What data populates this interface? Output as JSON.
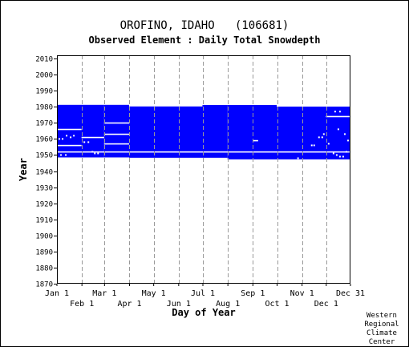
{
  "header": {
    "station": "OROFINO, IDAHO   (106681)",
    "subtitle": "Observed Element : Daily Total Snowdepth"
  },
  "footer": {
    "credit": "Western\nRegional\nClimate\nCenter"
  },
  "colors": {
    "data": "#0000ff",
    "gaps": "#ffffff",
    "grid": "#999999",
    "axis": "#000000"
  },
  "chart_data": {
    "type": "heatmap",
    "title": "OROFINO, IDAHO   (106681)",
    "subtitle": "Observed Element : Daily Total Snowdepth",
    "xlabel": "Day of Year",
    "ylabel": "Year",
    "xlim": [
      1,
      365
    ],
    "ylim": [
      1870,
      2012
    ],
    "x_ticks_upper": [
      {
        "label": "Jan 1",
        "day": 1
      },
      {
        "label": "Mar 1",
        "day": 60
      },
      {
        "label": "May 1",
        "day": 121
      },
      {
        "label": "Jul 1",
        "day": 182
      },
      {
        "label": "Sep 1",
        "day": 244
      },
      {
        "label": "Nov 1",
        "day": 305
      },
      {
        "label": "Dec 31",
        "day": 365
      }
    ],
    "x_ticks_lower": [
      {
        "label": "Feb 1",
        "day": 32
      },
      {
        "label": "Apr 1",
        "day": 91
      },
      {
        "label": "Jun 1",
        "day": 152
      },
      {
        "label": "Aug 1",
        "day": 213
      },
      {
        "label": "Oct 1",
        "day": 274
      },
      {
        "label": "Dec 1",
        "day": 335
      }
    ],
    "y_ticks": [
      2010,
      2000,
      1990,
      1980,
      1970,
      1960,
      1950,
      1940,
      1930,
      1920,
      1910,
      1900,
      1890,
      1880,
      1870
    ],
    "grid": true,
    "data_blocks": [
      {
        "start_day": 1,
        "end_day": 59,
        "from_year": 1948.5,
        "to_year": 1981.2
      },
      {
        "start_day": 60,
        "end_day": 90,
        "from_year": 1948.5,
        "to_year": 1981.2
      },
      {
        "start_day": 91,
        "end_day": 181,
        "from_year": 1948.3,
        "to_year": 1980.2
      },
      {
        "start_day": 182,
        "end_day": 212,
        "from_year": 1948.3,
        "to_year": 1981.1
      },
      {
        "start_day": 213,
        "end_day": 273,
        "from_year": 1947.3,
        "to_year": 1981.1
      },
      {
        "start_day": 274,
        "end_day": 365,
        "from_year": 1947.3,
        "to_year": 1980.1
      }
    ],
    "missing_periods": [
      {
        "year": 1952,
        "start_day": 1,
        "end_day": 365
      },
      {
        "year": 1966,
        "start_day": 1,
        "end_day": 31
      },
      {
        "year": 1956,
        "start_day": 1,
        "end_day": 31
      },
      {
        "year": 1961,
        "start_day": 32,
        "end_day": 59
      },
      {
        "year": 1970,
        "start_day": 60,
        "end_day": 90
      },
      {
        "year": 1963,
        "start_day": 60,
        "end_day": 90
      },
      {
        "year": 1957,
        "start_day": 60,
        "end_day": 90
      },
      {
        "year": 1959,
        "start_day": 245,
        "end_day": 250
      },
      {
        "year": 1974,
        "start_day": 335,
        "end_day": 365
      }
    ],
    "missing_points": [
      {
        "day": 4,
        "year": 1960
      },
      {
        "day": 8,
        "year": 1960
      },
      {
        "day": 13,
        "year": 1962
      },
      {
        "day": 18,
        "year": 1961
      },
      {
        "day": 22,
        "year": 1962
      },
      {
        "day": 6,
        "year": 1950
      },
      {
        "day": 12,
        "year": 1950
      },
      {
        "day": 35,
        "year": 1958
      },
      {
        "day": 40,
        "year": 1958
      },
      {
        "day": 45,
        "year": 1952
      },
      {
        "day": 48,
        "year": 1951
      },
      {
        "day": 52,
        "year": 1951
      },
      {
        "day": 300,
        "year": 1948
      },
      {
        "day": 317,
        "year": 1956
      },
      {
        "day": 320,
        "year": 1956
      },
      {
        "day": 326,
        "year": 1961
      },
      {
        "day": 330,
        "year": 1961
      },
      {
        "day": 332,
        "year": 1963
      },
      {
        "day": 338,
        "year": 1957
      },
      {
        "day": 344,
        "year": 1951
      },
      {
        "day": 348,
        "year": 1950
      },
      {
        "day": 352,
        "year": 1949
      },
      {
        "day": 356,
        "year": 1949
      },
      {
        "day": 360,
        "year": 1952
      },
      {
        "day": 346,
        "year": 1977
      },
      {
        "day": 352,
        "year": 1977
      },
      {
        "day": 350,
        "year": 1966
      },
      {
        "day": 358,
        "year": 1963
      },
      {
        "day": 362,
        "year": 1959
      }
    ]
  }
}
